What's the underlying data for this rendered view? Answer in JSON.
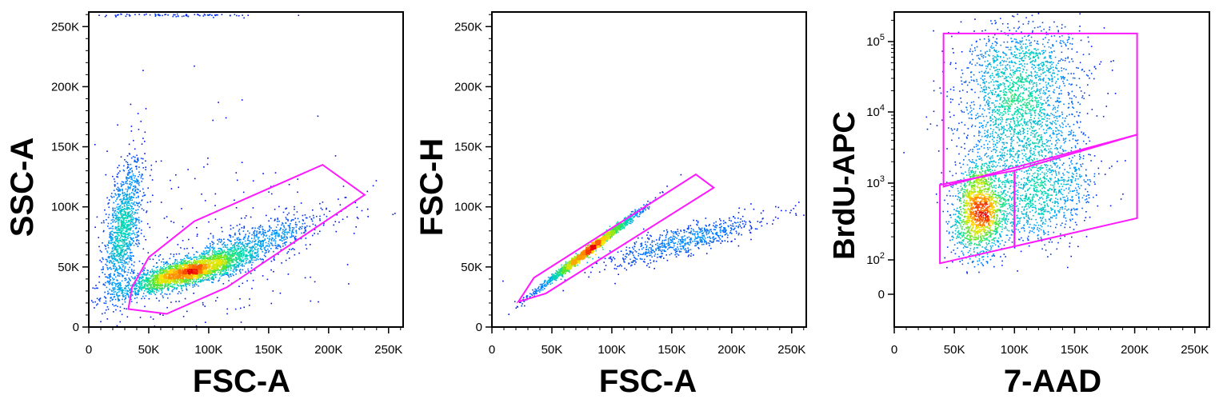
{
  "chart_data": [
    {
      "type": "scatter",
      "subtype": "flow-cytometry-density",
      "xlabel": "FSC-A",
      "ylabel": "SSC-A",
      "x_scale": "linear",
      "y_scale": "linear",
      "xlim": [
        0,
        262144
      ],
      "ylim": [
        0,
        262144
      ],
      "x_ticks": [
        {
          "value": 0,
          "label": "0"
        },
        {
          "value": 50000,
          "label": "50K"
        },
        {
          "value": 100000,
          "label": "100K"
        },
        {
          "value": 150000,
          "label": "150K"
        },
        {
          "value": 200000,
          "label": "200K"
        },
        {
          "value": 250000,
          "label": "250K"
        }
      ],
      "y_ticks": [
        {
          "value": 0,
          "label": "0"
        },
        {
          "value": 50000,
          "label": "50K"
        },
        {
          "value": 100000,
          "label": "100K"
        },
        {
          "value": 150000,
          "label": "150K"
        },
        {
          "value": 200000,
          "label": "200K"
        },
        {
          "value": 250000,
          "label": "250K"
        }
      ],
      "populations": [
        {
          "x": 82000,
          "y": 46000,
          "sx": 26000,
          "sy": 9000,
          "rho": 0.8,
          "n": 2600
        },
        {
          "x": 125000,
          "y": 66000,
          "sx": 38000,
          "sy": 15000,
          "rho": 0.85,
          "n": 1000
        },
        {
          "x": 28000,
          "y": 82000,
          "sx": 8000,
          "sy": 30000,
          "rho": 0.55,
          "n": 1200
        },
        {
          "x": 85000,
          "y": 50000,
          "sx": 60000,
          "sy": 60000,
          "rho": 0.0,
          "n": 300
        },
        {
          "x": 80000,
          "y": 260000,
          "sx": 35000,
          "sy": 600,
          "rho": 0.0,
          "n": 80
        }
      ],
      "gate": {
        "shape": "polygon",
        "color": "#ff19ff",
        "points": [
          [
            33000,
            15000
          ],
          [
            36000,
            33000
          ],
          [
            50000,
            58000
          ],
          [
            88000,
            88000
          ],
          [
            195000,
            135000
          ],
          [
            230000,
            110000
          ],
          [
            115000,
            33000
          ],
          [
            65000,
            11000
          ]
        ]
      }
    },
    {
      "type": "scatter",
      "subtype": "flow-cytometry-density",
      "xlabel": "FSC-A",
      "ylabel": "FSC-H",
      "x_scale": "linear",
      "y_scale": "linear",
      "xlim": [
        0,
        262144
      ],
      "ylim": [
        0,
        262144
      ],
      "x_ticks": [
        {
          "value": 0,
          "label": "0"
        },
        {
          "value": 50000,
          "label": "50K"
        },
        {
          "value": 100000,
          "label": "100K"
        },
        {
          "value": 150000,
          "label": "150K"
        },
        {
          "value": 200000,
          "label": "200K"
        },
        {
          "value": 250000,
          "label": "250K"
        }
      ],
      "y_ticks": [
        {
          "value": 0,
          "label": "0"
        },
        {
          "value": 50000,
          "label": "50K"
        },
        {
          "value": 100000,
          "label": "100K"
        },
        {
          "value": 150000,
          "label": "150K"
        },
        {
          "value": 200000,
          "label": "200K"
        },
        {
          "value": 250000,
          "label": "250K"
        }
      ],
      "populations": [
        {
          "x": 80000,
          "y": 64000,
          "sx": 20000,
          "sy": 15500,
          "rho": 0.993,
          "n": 2000
        },
        {
          "x": 158000,
          "y": 72000,
          "sx": 35000,
          "sy": 11000,
          "rho": 0.85,
          "n": 700
        }
      ],
      "gate": {
        "shape": "polygon",
        "color": "#ff19ff",
        "points": [
          [
            22000,
            21000
          ],
          [
            35000,
            41000
          ],
          [
            170000,
            127000
          ],
          [
            185000,
            116000
          ],
          [
            45000,
            28000
          ]
        ]
      }
    },
    {
      "type": "scatter",
      "subtype": "flow-cytometry-density",
      "xlabel": "7-AAD",
      "ylabel": "BrdU-APC",
      "x_scale": "linear",
      "y_scale": "biexponential",
      "xlim": [
        0,
        262144
      ],
      "ylim": [
        -100,
        262144
      ],
      "x_ticks": [
        {
          "value": 0,
          "label": "0"
        },
        {
          "value": 50000,
          "label": "50K"
        },
        {
          "value": 100000,
          "label": "100K"
        },
        {
          "value": 150000,
          "label": "150K"
        },
        {
          "value": 200000,
          "label": "200K"
        },
        {
          "value": 250000,
          "label": "250K"
        }
      ],
      "y_ticks": [
        {
          "value": 0,
          "label": "0"
        },
        {
          "value": 100,
          "base": "10",
          "exp": "2"
        },
        {
          "value": 1000,
          "base": "10",
          "exp": "3"
        },
        {
          "value": 10000,
          "base": "10",
          "exp": "4"
        },
        {
          "value": 100000,
          "base": "10",
          "exp": "5"
        }
      ],
      "populations": [
        {
          "x": 70000,
          "y": 450,
          "sx": 11000,
          "sy": 0.3,
          "rho": 0.1,
          "n": 1600
        },
        {
          "x": 122000,
          "y": 700,
          "sx": 22000,
          "sy": 0.32,
          "rho": 0.2,
          "n": 900
        },
        {
          "x": 105000,
          "y": 9000,
          "sx": 25000,
          "sy": 0.55,
          "rho": 0.1,
          "n": 1800
        },
        {
          "x": 105000,
          "y": 50000,
          "sx": 25000,
          "sy": 0.3,
          "rho": 0.0,
          "n": 500
        }
      ],
      "gates": [
        {
          "shape": "polygon",
          "color": "#ff19ff",
          "points": [
            [
              41000,
              900
            ],
            [
              41000,
              130000
            ],
            [
              202000,
              130000
            ],
            [
              202000,
              4800
            ]
          ]
        },
        {
          "shape": "polygon",
          "color": "#ff19ff",
          "points": [
            [
              38000,
              90
            ],
            [
              38000,
              950
            ],
            [
              100000,
              1500
            ],
            [
              100000,
              150
            ]
          ]
        },
        {
          "shape": "polygon",
          "color": "#ff19ff",
          "points": [
            [
              100000,
              150
            ],
            [
              100000,
              1500
            ],
            [
              202000,
              4800
            ],
            [
              202000,
              350
            ]
          ]
        }
      ]
    }
  ]
}
